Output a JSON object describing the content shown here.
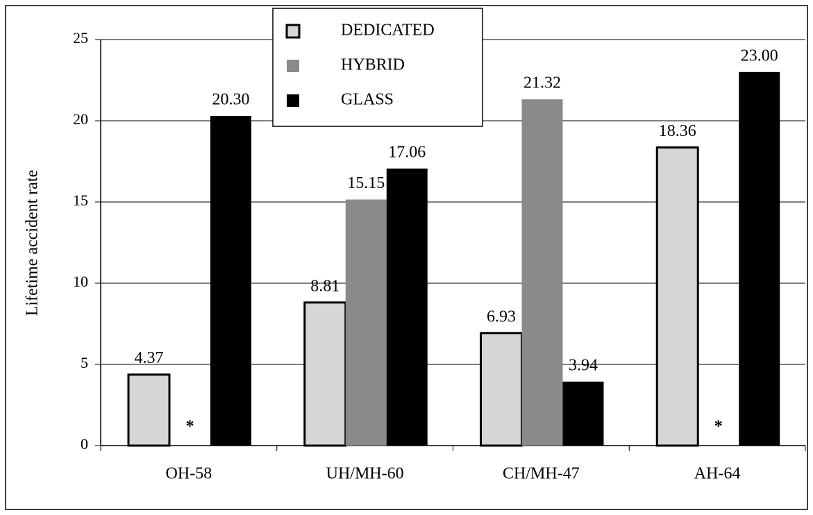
{
  "chart_data": {
    "type": "bar",
    "y_label": "Lifetime accident rate",
    "categories": [
      "OH-58",
      "UH/MH-60",
      "CH/MH-47",
      "AH-64"
    ],
    "series": [
      {
        "name": "DEDICATED",
        "color": "#d6d6d6",
        "values": [
          4.37,
          8.81,
          6.93,
          18.36
        ],
        "value_labels": [
          "4.37",
          "8.81",
          "6.93",
          "18.36"
        ]
      },
      {
        "name": "HYBRID",
        "color": "#8a8a8a",
        "values": [
          null,
          15.15,
          21.32,
          null
        ],
        "value_labels": [
          null,
          "15.15",
          "21.32",
          null
        ]
      },
      {
        "name": "GLASS",
        "color": "#000000",
        "values": [
          20.3,
          17.06,
          3.94,
          23.0
        ],
        "value_labels": [
          "20.30",
          "17.06",
          "3.94",
          "23.00"
        ]
      }
    ],
    "missing_label": "*",
    "ylim": [
      0,
      25
    ],
    "yticks": [
      0,
      5,
      10,
      15,
      20,
      25
    ],
    "grid": true,
    "legend": "top"
  }
}
